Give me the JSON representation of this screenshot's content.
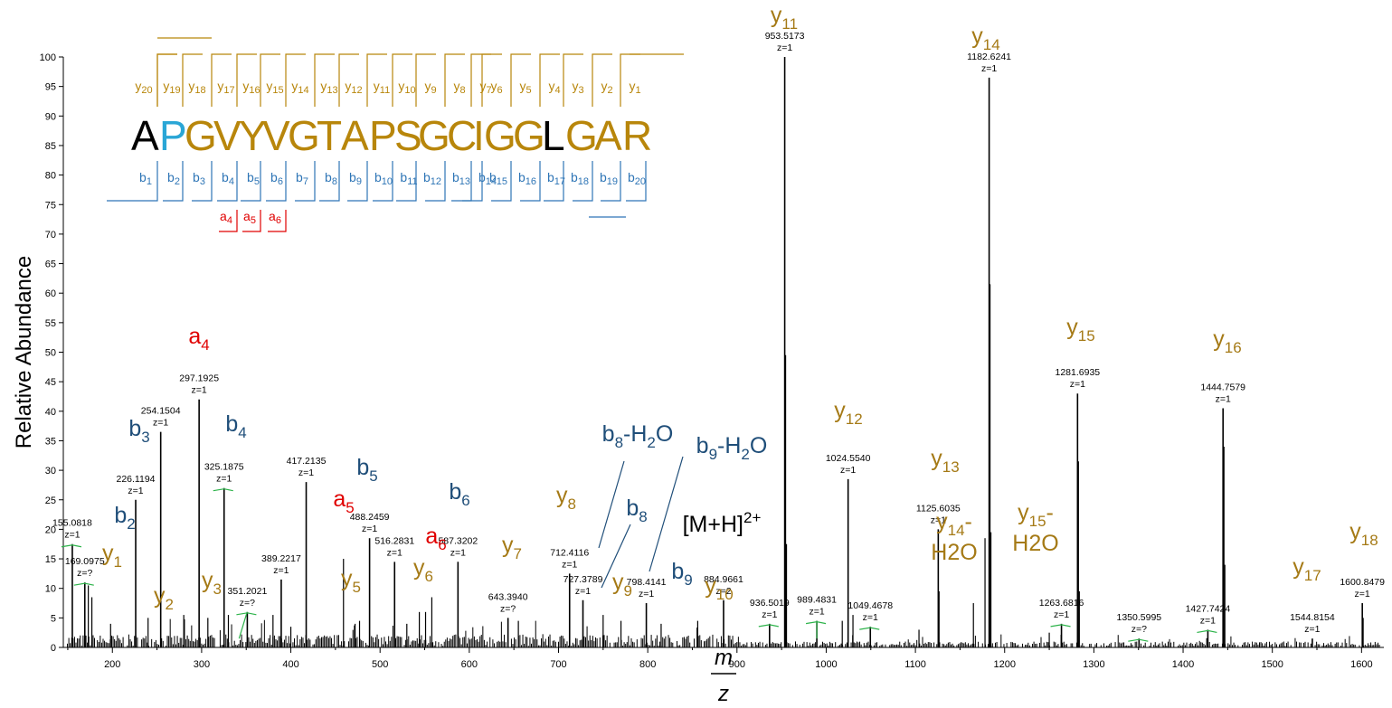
{
  "chart_data": {
    "type": "bar",
    "xlabel_num": "m",
    "xlabel_den": "z",
    "ylabel": "Relative Abundance",
    "xlim": [
      145,
      1625
    ],
    "ylim": [
      0,
      100
    ],
    "xticks": [
      "200",
      "300",
      "400",
      "500",
      "600",
      "700",
      "800",
      "900",
      "1000",
      "1100",
      "1200",
      "1300",
      "1400",
      "1500",
      "1600"
    ],
    "yticks": [
      "0",
      "5",
      "10",
      "15",
      "20",
      "25",
      "30",
      "35",
      "40",
      "45",
      "50",
      "55",
      "60",
      "65",
      "70",
      "75",
      "80",
      "85",
      "90",
      "95",
      "100"
    ],
    "peaks": [
      {
        "mz": 155.0818,
        "int": 17.5,
        "mz_label": "155.0818",
        "z_label": "z=1"
      },
      {
        "mz": 169.0975,
        "int": 11.0,
        "mz_label": "169.0975",
        "z_label": "z=?"
      },
      {
        "mz": 226.1194,
        "int": 25.0,
        "mz_label": "226.1194",
        "z_label": "z=1"
      },
      {
        "mz": 254.1504,
        "int": 36.5,
        "mz_label": "254.1504",
        "z_label": "z=1"
      },
      {
        "mz": 297.1925,
        "int": 42.0,
        "mz_label": "297.1925",
        "z_label": "z=1"
      },
      {
        "mz": 325.1875,
        "int": 27.0,
        "mz_label": "325.1875",
        "z_label": "z=1"
      },
      {
        "mz": 351.2021,
        "int": 6.0,
        "mz_label": "351.2021",
        "z_label": "z=?"
      },
      {
        "mz": 389.2217,
        "int": 11.5,
        "mz_label": "389.2217",
        "z_label": "z=1"
      },
      {
        "mz": 417.2135,
        "int": 28.0,
        "mz_label": "417.2135",
        "z_label": "z=1"
      },
      {
        "mz": 488.2459,
        "int": 18.5,
        "mz_label": "488.2459",
        "z_label": "z=1"
      },
      {
        "mz": 516.2831,
        "int": 14.5,
        "mz_label": "516.2831",
        "z_label": "z=1"
      },
      {
        "mz": 587.3202,
        "int": 14.5,
        "mz_label": "587.3202",
        "z_label": "z=1"
      },
      {
        "mz": 643.394,
        "int": 5.0,
        "mz_label": "643.3940",
        "z_label": "z=?"
      },
      {
        "mz": 712.4116,
        "int": 12.5,
        "mz_label": "712.4116",
        "z_label": "z=1"
      },
      {
        "mz": 727.3789,
        "int": 8.0,
        "mz_label": "727.3789",
        "z_label": "z=1"
      },
      {
        "mz": 798.4141,
        "int": 7.5,
        "mz_label": "798.4141",
        "z_label": "z=1"
      },
      {
        "mz": 884.9661,
        "int": 8.0,
        "mz_label": "884.9661",
        "z_label": "z=2"
      },
      {
        "mz": 936.5019,
        "int": 4.0,
        "mz_label": "936.5019",
        "z_label": "z=1"
      },
      {
        "mz": 953.5173,
        "int": 100.0,
        "mz_label": "953.5173",
        "z_label": "z=1"
      },
      {
        "mz": 989.4831,
        "int": 4.5,
        "mz_label": "989.4831",
        "z_label": "z=1"
      },
      {
        "mz": 1024.554,
        "int": 28.5,
        "mz_label": "1024.5540",
        "z_label": "z=1"
      },
      {
        "mz": 1049.4678,
        "int": 3.5,
        "mz_label": "1049.4678",
        "z_label": "z=1"
      },
      {
        "mz": 1125.6035,
        "int": 20.0,
        "mz_label": "1125.6035",
        "z_label": "z=1"
      },
      {
        "mz": 1182.6241,
        "int": 96.5,
        "mz_label": "1182.6241",
        "z_label": "z=1"
      },
      {
        "mz": 1263.6816,
        "int": 4.0,
        "mz_label": "1263.6816",
        "z_label": "z=1"
      },
      {
        "mz": 1281.6935,
        "int": 43.0,
        "mz_label": "1281.6935",
        "z_label": "z=1"
      },
      {
        "mz": 1350.5995,
        "int": 1.5,
        "mz_label": "1350.5995",
        "z_label": "z=?"
      },
      {
        "mz": 1427.7424,
        "int": 3.0,
        "mz_label": "1427.7424",
        "z_label": "z=1"
      },
      {
        "mz": 1444.7579,
        "int": 40.5,
        "mz_label": "1444.7579",
        "z_label": "z=1"
      },
      {
        "mz": 1544.8154,
        "int": 1.5,
        "mz_label": "1544.8154",
        "z_label": "z=1"
      },
      {
        "mz": 1600.8479,
        "int": 7.5,
        "mz_label": "1600.8479",
        "z_label": "z=1"
      }
    ],
    "minor_peaks": [
      {
        "mz": 173,
        "int": 10.5
      },
      {
        "mz": 177,
        "int": 8.5
      },
      {
        "mz": 198,
        "int": 4.0
      },
      {
        "mz": 240,
        "int": 5.0
      },
      {
        "mz": 280,
        "int": 5.5
      },
      {
        "mz": 307,
        "int": 5.0
      },
      {
        "mz": 330,
        "int": 5.5
      },
      {
        "mz": 380,
        "int": 5.5
      },
      {
        "mz": 400,
        "int": 3.5
      },
      {
        "mz": 459,
        "int": 15.0
      },
      {
        "mz": 472,
        "int": 4.0
      },
      {
        "mz": 477,
        "int": 4.5
      },
      {
        "mz": 530,
        "int": 4.0
      },
      {
        "mz": 544,
        "int": 6.0
      },
      {
        "mz": 551,
        "int": 6.0
      },
      {
        "mz": 558,
        "int": 8.5
      },
      {
        "mz": 655,
        "int": 4.5
      },
      {
        "mz": 750,
        "int": 5.5
      },
      {
        "mz": 770,
        "int": 4.5
      },
      {
        "mz": 815,
        "int": 4.0
      },
      {
        "mz": 856,
        "int": 4.5
      },
      {
        "mz": 954.5,
        "int": 49.5
      },
      {
        "mz": 955.5,
        "int": 17.5
      },
      {
        "mz": 1018,
        "int": 4.5
      },
      {
        "mz": 1030,
        "int": 5.5
      },
      {
        "mz": 1104,
        "int": 3.0
      },
      {
        "mz": 1126.5,
        "int": 9.5
      },
      {
        "mz": 1165,
        "int": 7.5
      },
      {
        "mz": 1178,
        "int": 18.5
      },
      {
        "mz": 1183.6,
        "int": 61.5
      },
      {
        "mz": 1184.6,
        "int": 19.5
      },
      {
        "mz": 1250,
        "int": 2.5
      },
      {
        "mz": 1282.7,
        "int": 31.5
      },
      {
        "mz": 1283.7,
        "int": 9.5
      },
      {
        "mz": 1445.8,
        "int": 34.0
      },
      {
        "mz": 1446.8,
        "int": 14.0
      },
      {
        "mz": 1601.8,
        "int": 5.0
      }
    ],
    "noise_seed": 7,
    "colors": {
      "y": "#a57a16",
      "b": "#1f4e79",
      "a": "#e00000",
      "seq_y": "#b8860b",
      "seq_b": "#2e75b6",
      "frag_a": "#e00000",
      "green": "#2db34a"
    }
  },
  "ion_labels": {
    "y1": {
      "base": "y",
      "sub": "1"
    },
    "y2": {
      "base": "y",
      "sub": "2"
    },
    "y3": {
      "base": "y",
      "sub": "3"
    },
    "y5": {
      "base": "y",
      "sub": "5"
    },
    "y6": {
      "base": "y",
      "sub": "6"
    },
    "y7": {
      "base": "y",
      "sub": "7"
    },
    "y8": {
      "base": "y",
      "sub": "8"
    },
    "y9": {
      "base": "y",
      "sub": "9"
    },
    "y10": {
      "base": "y",
      "sub": "10"
    },
    "y11": {
      "base": "y",
      "sub": "11"
    },
    "y12": {
      "base": "y",
      "sub": "12"
    },
    "y13": {
      "base": "y",
      "sub": "13"
    },
    "y14": {
      "base": "y",
      "sub": "14"
    },
    "y15": {
      "base": "y",
      "sub": "15"
    },
    "y16": {
      "base": "y",
      "sub": "16"
    },
    "y17": {
      "base": "y",
      "sub": "17"
    },
    "y18": {
      "base": "y",
      "sub": "18"
    },
    "y14h2o": {
      "base": "y",
      "sub": "14",
      "suffix": "-",
      "line2": "H2O"
    },
    "y15h2o": {
      "base": "y",
      "sub": "15",
      "suffix": "-",
      "line2": "H2O"
    },
    "b2": {
      "base": "b",
      "sub": "2"
    },
    "b3": {
      "base": "b",
      "sub": "3"
    },
    "b4": {
      "base": "b",
      "sub": "4"
    },
    "b5": {
      "base": "b",
      "sub": "5"
    },
    "b6": {
      "base": "b",
      "sub": "6"
    },
    "b8": {
      "base": "b",
      "sub": "8"
    },
    "b9": {
      "base": "b",
      "sub": "9"
    },
    "b8h2o": {
      "base": "b",
      "sub": "8",
      "suffix": "-H",
      "sub2": "2",
      "suffix2": "O"
    },
    "b9h2o": {
      "base": "b",
      "sub": "9",
      "suffix": "-H",
      "sub2": "2",
      "suffix2": "O"
    },
    "a4": {
      "base": "a",
      "sub": "4"
    },
    "a5": {
      "base": "a",
      "sub": "5"
    },
    "a6": {
      "base": "a",
      "sub": "6"
    },
    "mh": {
      "text": "[M+H]",
      "sup": "2+"
    }
  },
  "sequence": {
    "residues": [
      "A",
      "P",
      "G",
      "V",
      "Y",
      "V",
      "G",
      "T",
      "A",
      "P",
      "S",
      "G",
      "C",
      "I",
      "G",
      "G",
      "L",
      "G",
      "A",
      "R"
    ],
    "residue_colors": [
      "#000000",
      "#2aa6d6",
      "#b8860b",
      "#b8860b",
      "#b8860b",
      "#b8860b",
      "#b8860b",
      "#b8860b",
      "#b8860b",
      "#b8860b",
      "#b8860b",
      "#b8860b",
      "#b8860b",
      "#b8860b",
      "#b8860b",
      "#b8860b",
      "#000000",
      "#b8860b",
      "#b8860b",
      "#b8860b"
    ],
    "y_ions": [
      "y20",
      "y19",
      "y18",
      "y17",
      "y16",
      "y15",
      "y14",
      "y13",
      "y12",
      "y11",
      "y10",
      "y9",
      "y8",
      "y7",
      "y6",
      "y5",
      "y4",
      "y3",
      "y2",
      "y1"
    ],
    "b_ions": [
      "b1",
      "b2",
      "b3",
      "b4",
      "b5",
      "b6",
      "b7",
      "b8",
      "b9",
      "b10",
      "b11",
      "b12",
      "b13",
      "b14",
      "b15",
      "b16",
      "b17",
      "b18",
      "b19",
      "b20"
    ],
    "a_ions": [
      "a4",
      "a5",
      "a6"
    ]
  }
}
